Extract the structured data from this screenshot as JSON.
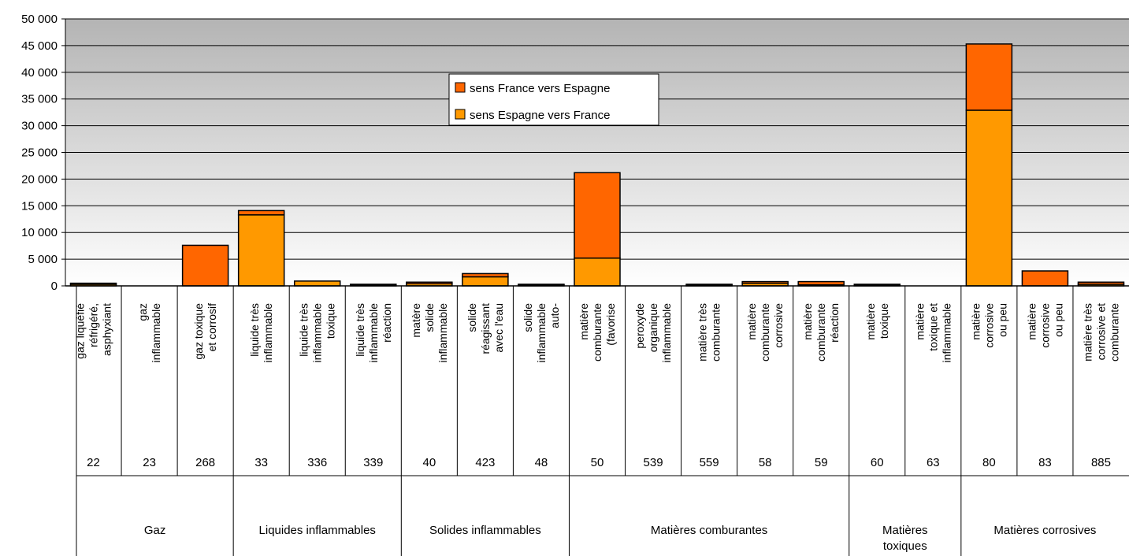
{
  "chart_data": {
    "type": "bar",
    "stacked": true,
    "ylim": [
      0,
      50000
    ],
    "yticks": [
      "0",
      "5 000",
      "10 000",
      "15 000",
      "20 000",
      "25 000",
      "30 000",
      "35 000",
      "40 000",
      "45 000",
      "50 000"
    ],
    "grid": true,
    "legend_position": "top-center",
    "categories": [
      {
        "code": "22",
        "label": [
          "gaz liquéfié",
          "réfrigéré,",
          "asphyxiant"
        ]
      },
      {
        "code": "23",
        "label": [
          "gaz",
          "inflammable"
        ]
      },
      {
        "code": "268",
        "label": [
          "gaz toxique",
          "et corrosif"
        ]
      },
      {
        "code": "33",
        "label": [
          "liquide très",
          "inflammable"
        ]
      },
      {
        "code": "336",
        "label": [
          "liquide très",
          "inflammable",
          "toxique"
        ]
      },
      {
        "code": "339",
        "label": [
          "liquide très",
          "inflammable",
          "réaction"
        ]
      },
      {
        "code": "40",
        "label": [
          "matère",
          "solide",
          "inflammable"
        ]
      },
      {
        "code": "423",
        "label": [
          "solide",
          "réagissant",
          "avec l'eau"
        ]
      },
      {
        "code": "48",
        "label": [
          "solide",
          "inflammable",
          "auto-"
        ]
      },
      {
        "code": "50",
        "label": [
          "matière",
          "comburante",
          "(favorise"
        ]
      },
      {
        "code": "539",
        "label": [
          "peroxyde",
          "organique",
          "inflammable"
        ]
      },
      {
        "code": "559",
        "label": [
          "matière très",
          "comburante"
        ]
      },
      {
        "code": "58",
        "label": [
          "matière",
          "comburante",
          "corrosive"
        ]
      },
      {
        "code": "59",
        "label": [
          "matière",
          "comburante",
          "réaction"
        ]
      },
      {
        "code": "60",
        "label": [
          "matière",
          "toxique"
        ]
      },
      {
        "code": "63",
        "label": [
          "matière",
          "toxique et",
          "inflammable"
        ]
      },
      {
        "code": "80",
        "label": [
          "matière",
          "corrosive",
          "ou peu"
        ]
      },
      {
        "code": "83",
        "label": [
          "matière",
          "corrosive",
          "ou peu"
        ]
      },
      {
        "code": "885",
        "label": [
          "matière très",
          "corrosive et",
          "comburante"
        ]
      }
    ],
    "groups": [
      {
        "label": [
          "Gaz"
        ],
        "span": 3
      },
      {
        "label": [
          "Liquides inflammables"
        ],
        "span": 3
      },
      {
        "label": [
          "Solides inflammables"
        ],
        "span": 3
      },
      {
        "label": [
          "Matières comburantes"
        ],
        "span": 5
      },
      {
        "label": [
          "Matières",
          "toxiques"
        ],
        "span": 2
      },
      {
        "label": [
          "Matières corrosives"
        ],
        "span": 3
      }
    ],
    "series": [
      {
        "name": "sens Espagne vers France",
        "color": "#FF9900",
        "values": [
          300,
          0,
          0,
          13300,
          900,
          200,
          400,
          1700,
          200,
          5200,
          0,
          200,
          500,
          200,
          200,
          0,
          32900,
          0,
          300
        ]
      },
      {
        "name": "sens France vers Espagne",
        "color": "#FF6600",
        "values": [
          200,
          0,
          7600,
          800,
          0,
          100,
          300,
          600,
          100,
          16000,
          0,
          100,
          300,
          600,
          100,
          0,
          12400,
          2800,
          400
        ]
      }
    ],
    "legend_order": [
      1,
      0
    ]
  }
}
